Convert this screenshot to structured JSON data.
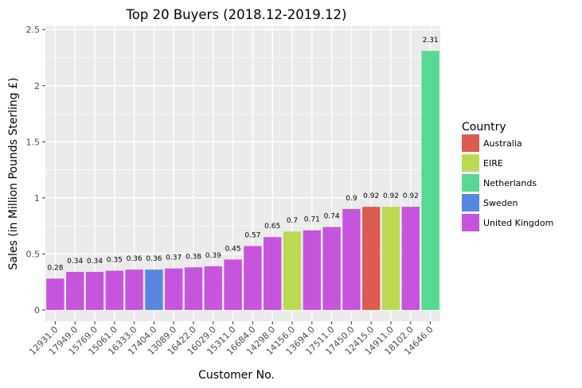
{
  "chart_data": {
    "type": "bar",
    "title": "Top 20 Buyers (2018.12-2019.12)",
    "xlabel": "Customer No.",
    "ylabel": "Sales (in Million Pounds Sterling £)",
    "ylim": [
      -0.1,
      2.53
    ],
    "yticks": [
      0,
      0.5,
      1,
      1.5,
      2,
      2.5
    ],
    "ytick_labels": [
      "0",
      "0.5",
      "1",
      "1.5",
      "2",
      "2.5"
    ],
    "categories": [
      "12931.0",
      "17949.0",
      "15769.0",
      "15061.0",
      "16333.0",
      "17404.0",
      "13089.0",
      "16422.0",
      "16029.0",
      "15311.0",
      "16684.0",
      "14298.0",
      "14156.0",
      "13694.0",
      "17511.0",
      "17450.0",
      "12415.0",
      "14911.0",
      "18102.0",
      "14646.0"
    ],
    "values": [
      0.28,
      0.34,
      0.34,
      0.35,
      0.36,
      0.36,
      0.37,
      0.38,
      0.39,
      0.45,
      0.57,
      0.65,
      0.7,
      0.71,
      0.74,
      0.9,
      0.92,
      0.92,
      0.92,
      2.31
    ],
    "value_labels": [
      "0.28",
      "0.34",
      "0.34",
      "0.35",
      "0.36",
      "0.36",
      "0.37",
      "0.38",
      "0.39",
      "0.45",
      "0.57",
      "0.65",
      "0.7",
      "0.71",
      "0.74",
      "0.9",
      "0.92",
      "0.92",
      "0.92",
      "2.31"
    ],
    "countries": [
      "United Kingdom",
      "United Kingdom",
      "United Kingdom",
      "United Kingdom",
      "United Kingdom",
      "Sweden",
      "United Kingdom",
      "United Kingdom",
      "United Kingdom",
      "United Kingdom",
      "United Kingdom",
      "United Kingdom",
      "EIRE",
      "United Kingdom",
      "United Kingdom",
      "United Kingdom",
      "Australia",
      "EIRE",
      "United Kingdom",
      "Netherlands"
    ],
    "grid": true,
    "legend": {
      "title": "Country",
      "placement": "right",
      "entries": [
        {
          "name": "Australia",
          "color": "#db5c52"
        },
        {
          "name": "EIRE",
          "color": "#bcd954"
        },
        {
          "name": "Netherlands",
          "color": "#55d993"
        },
        {
          "name": "Sweden",
          "color": "#5787e0"
        },
        {
          "name": "United Kingdom",
          "color": "#c654dc"
        }
      ]
    },
    "panel_color": "#ebebeb",
    "grid_color": "#ffffff"
  }
}
